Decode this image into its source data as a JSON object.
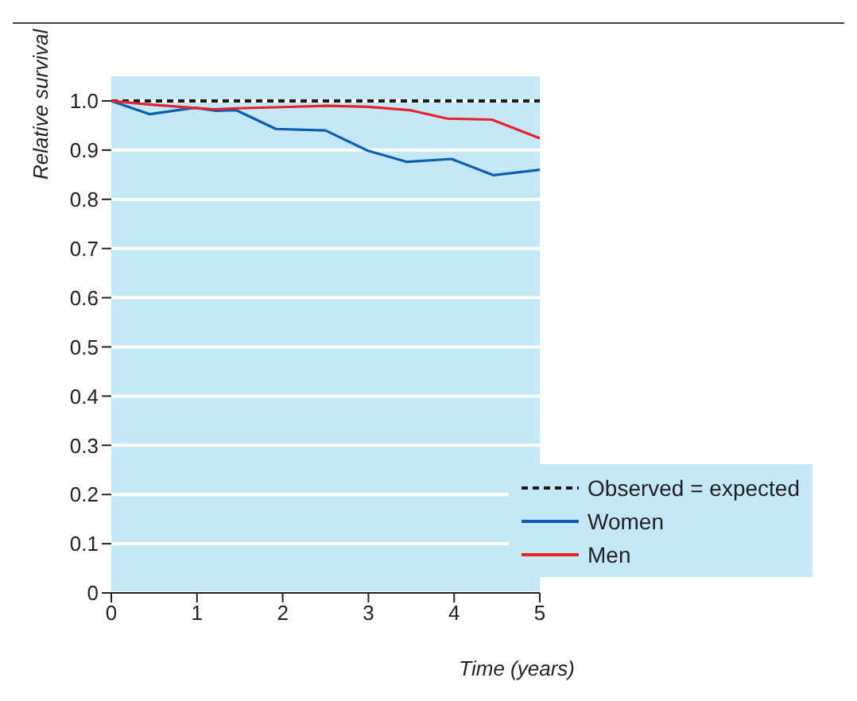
{
  "chart_data": {
    "type": "line",
    "xlabel": "Time (years)",
    "ylabel": "Relative survival",
    "xlim": [
      0,
      5
    ],
    "ylim": [
      0,
      1.05
    ],
    "xticks": [
      0,
      1,
      2,
      3,
      4,
      5
    ],
    "yticks": [
      0,
      0.1,
      0.2,
      0.3,
      0.4,
      0.5,
      0.6,
      0.7,
      0.8,
      0.9,
      {
        "value": 1,
        "label": "1.0"
      }
    ],
    "grid": "y",
    "legend": "bottom right",
    "marker": "none",
    "series": [
      {
        "name": "Observed = expected",
        "color": "#1a1a1a",
        "line_style": "dashed",
        "x": [
          0,
          5
        ],
        "values": [
          1,
          1
        ]
      },
      {
        "name": "Women",
        "color": "#0a5fb4",
        "line_style": "solid",
        "x": [
          0,
          0.45,
          0.97,
          1.22,
          1.46,
          1.92,
          2.5,
          2.99,
          3.45,
          3.97,
          4.46,
          5
        ],
        "values": [
          1,
          0.973,
          0.986,
          0.98,
          0.981,
          0.943,
          0.94,
          0.899,
          0.876,
          0.882,
          0.849,
          0.86
        ]
      },
      {
        "name": "Men",
        "color": "#e8222d",
        "line_style": "solid",
        "x": [
          0,
          0.43,
          1.19,
          1.46,
          1.91,
          2.52,
          2.99,
          3.49,
          3.92,
          4.44,
          5
        ],
        "values": [
          1,
          0.993,
          0.983,
          0.985,
          0.987,
          0.99,
          0.988,
          0.981,
          0.964,
          0.962,
          0.924
        ]
      }
    ]
  }
}
